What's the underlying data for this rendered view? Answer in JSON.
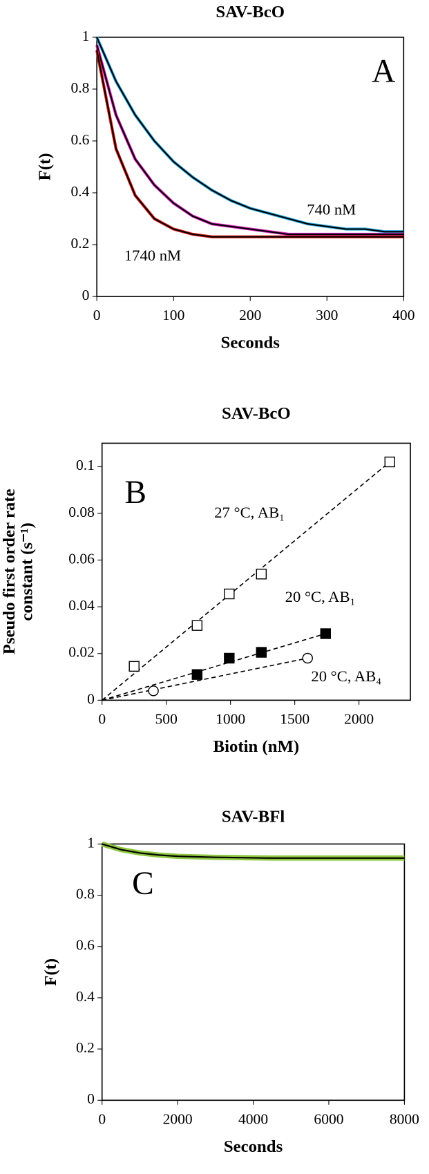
{
  "chart_data": [
    {
      "type": "line",
      "title": "SAV-BcO",
      "panel_label": "A",
      "xlabel": "Seconds",
      "ylabel": "F(t)",
      "annotations": [
        "740 nM",
        "1740 nM"
      ],
      "xlim": [
        0,
        400
      ],
      "xticks": [
        0,
        100,
        200,
        300,
        400
      ],
      "ylim": [
        0,
        1
      ],
      "yticks": [
        0,
        0.2,
        0.4,
        0.6,
        0.8,
        1
      ],
      "fit_color": "#000000",
      "x": [
        0,
        25,
        50,
        75,
        100,
        125,
        150,
        175,
        200,
        225,
        250,
        275,
        300,
        325,
        350,
        375,
        400
      ],
      "series": [
        {
          "color": "#29abe2",
          "values": [
            1.0,
            0.83,
            0.7,
            0.6,
            0.52,
            0.46,
            0.41,
            0.37,
            0.34,
            0.32,
            0.3,
            0.28,
            0.27,
            0.26,
            0.26,
            0.25,
            0.25
          ]
        },
        {
          "color": "#e020c0",
          "values": [
            0.97,
            0.7,
            0.53,
            0.43,
            0.36,
            0.31,
            0.28,
            0.27,
            0.26,
            0.25,
            0.24,
            0.24,
            0.24,
            0.24,
            0.24,
            0.24,
            0.24
          ]
        },
        {
          "color": "#e8201c",
          "values": [
            0.95,
            0.57,
            0.39,
            0.3,
            0.26,
            0.24,
            0.23,
            0.23,
            0.23,
            0.23,
            0.23,
            0.23,
            0.23,
            0.23,
            0.23,
            0.23,
            0.23
          ]
        }
      ]
    },
    {
      "type": "scatter",
      "title": "SAV-BcO",
      "panel_label": "B",
      "xlabel": "Biotin (nM)",
      "ylabel": [
        "Pseudo first order rate",
        "constant (s⁻¹)"
      ],
      "annotations": [
        "27 °C, AB₁",
        "20 °C, AB₁",
        "20 °C, AB₄"
      ],
      "xlim": [
        0,
        2400
      ],
      "xticks": [
        0,
        500,
        1000,
        1500,
        2000
      ],
      "ylim": [
        0,
        0.11
      ],
      "yticks": [
        0,
        0.02,
        0.04,
        0.06,
        0.08,
        0.1
      ],
      "series": [
        {
          "marker": "square-open",
          "color": "#000000",
          "x": [
            250,
            740,
            990,
            1240,
            2240
          ],
          "values": [
            0.0145,
            0.032,
            0.0455,
            0.054,
            0.102
          ]
        },
        {
          "marker": "square",
          "color": "#000000",
          "x": [
            740,
            990,
            1240,
            1740
          ],
          "values": [
            0.011,
            0.018,
            0.0205,
            0.0285
          ]
        },
        {
          "marker": "circle-open",
          "color": "#000000",
          "x": [
            400,
            1600
          ],
          "values": [
            0.004,
            0.018
          ]
        }
      ]
    },
    {
      "type": "line",
      "title": "SAV-BFl",
      "panel_label": "C",
      "xlabel": "Seconds",
      "ylabel": "F(t)",
      "annotations": [],
      "xlim": [
        0,
        8000
      ],
      "xticks": [
        0,
        2000,
        4000,
        6000,
        8000
      ],
      "ylim": [
        0,
        1
      ],
      "yticks": [
        0,
        0.2,
        0.4,
        0.6,
        0.8,
        1
      ],
      "fit_color": "#000000",
      "x": [
        0,
        500,
        1000,
        1500,
        2000,
        2500,
        3000,
        3500,
        4000,
        4500,
        5000,
        5500,
        6000,
        6500,
        7000,
        7500,
        8000
      ],
      "series": [
        {
          "color": "#8dc63f",
          "values": [
            1.0,
            0.978,
            0.965,
            0.957,
            0.952,
            0.95,
            0.948,
            0.947,
            0.946,
            0.945,
            0.945,
            0.945,
            0.945,
            0.945,
            0.945,
            0.945,
            0.945
          ]
        }
      ]
    }
  ]
}
